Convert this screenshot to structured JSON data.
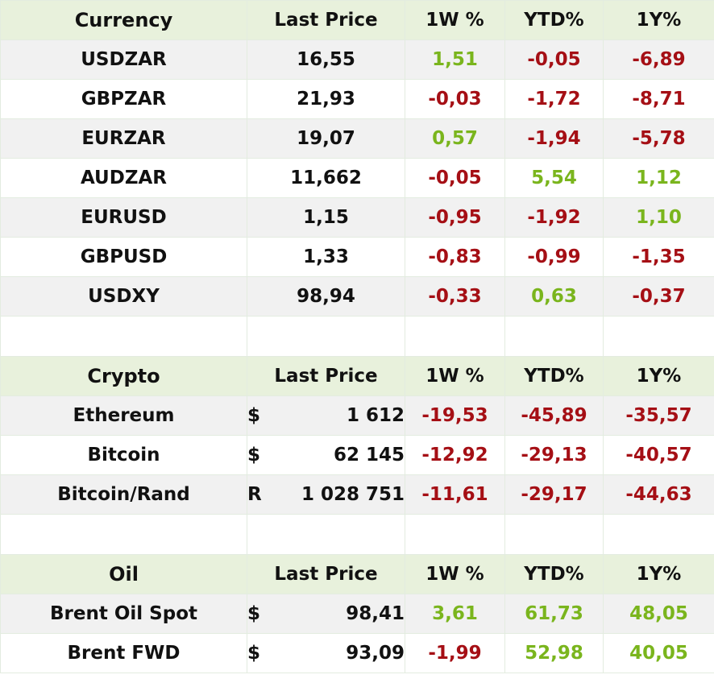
{
  "currency": {
    "headers": [
      "Currency",
      "Last Price",
      "1W %",
      "YTD%",
      "1Y%"
    ],
    "rows": [
      {
        "name": "USDZAR",
        "price": "16,55",
        "w1": "1,51",
        "ytd": "-0,05",
        "y1": "-6,89",
        "w1_dir": "pos",
        "ytd_dir": "neg",
        "y1_dir": "neg"
      },
      {
        "name": "GBPZAR",
        "price": "21,93",
        "w1": "-0,03",
        "ytd": "-1,72",
        "y1": "-8,71",
        "w1_dir": "neg",
        "ytd_dir": "neg",
        "y1_dir": "neg"
      },
      {
        "name": "EURZAR",
        "price": "19,07",
        "w1": "0,57",
        "ytd": "-1,94",
        "y1": "-5,78",
        "w1_dir": "pos",
        "ytd_dir": "neg",
        "y1_dir": "neg"
      },
      {
        "name": "AUDZAR",
        "price": "11,662",
        "w1": "-0,05",
        "ytd": "5,54",
        "y1": "1,12",
        "w1_dir": "neg",
        "ytd_dir": "pos",
        "y1_dir": "pos"
      },
      {
        "name": "EURUSD",
        "price": "1,15",
        "w1": "-0,95",
        "ytd": "-1,92",
        "y1": "1,10",
        "w1_dir": "neg",
        "ytd_dir": "neg",
        "y1_dir": "pos"
      },
      {
        "name": "GBPUSD",
        "price": "1,33",
        "w1": "-0,83",
        "ytd": "-0,99",
        "y1": "-1,35",
        "w1_dir": "neg",
        "ytd_dir": "neg",
        "y1_dir": "neg"
      },
      {
        "name": "USDXY",
        "price": "98,94",
        "w1": "-0,33",
        "ytd": "0,63",
        "y1": "-0,37",
        "w1_dir": "neg",
        "ytd_dir": "pos",
        "y1_dir": "neg"
      }
    ]
  },
  "crypto": {
    "headers": [
      "Crypto",
      "Last Price",
      "1W %",
      "YTD%",
      "1Y%"
    ],
    "rows": [
      {
        "name": "Ethereum",
        "symbol": "$",
        "price": "1 612",
        "w1": "-19,53",
        "ytd": "-45,89",
        "y1": "-35,57"
      },
      {
        "name": "Bitcoin",
        "symbol": "$",
        "price": "62 145",
        "w1": "-12,92",
        "ytd": "-29,13",
        "y1": "-40,57"
      },
      {
        "name": "Bitcoin/Rand",
        "symbol": "R",
        "price": "1 028 751",
        "w1": "-11,61",
        "ytd": "-29,17",
        "y1": "-44,63"
      }
    ]
  },
  "oil": {
    "headers": [
      "Oil",
      "Last Price",
      "1W %",
      "YTD%",
      "1Y%"
    ],
    "rows": [
      {
        "name": "Brent Oil Spot",
        "symbol": "$",
        "price": "98,41",
        "w1": "3,61",
        "ytd": "61,73",
        "y1": "48,05"
      },
      {
        "name": "Brent FWD",
        "symbol": "$",
        "price": "93,09",
        "w1": "-1,99",
        "ytd": "52,98",
        "y1": "40,05"
      }
    ]
  },
  "colors": {
    "positive": "#7ab51d",
    "negative": "#a50f15",
    "header_bg": "#e8f1dc",
    "alt_row_bg": "#f1f1f1"
  }
}
